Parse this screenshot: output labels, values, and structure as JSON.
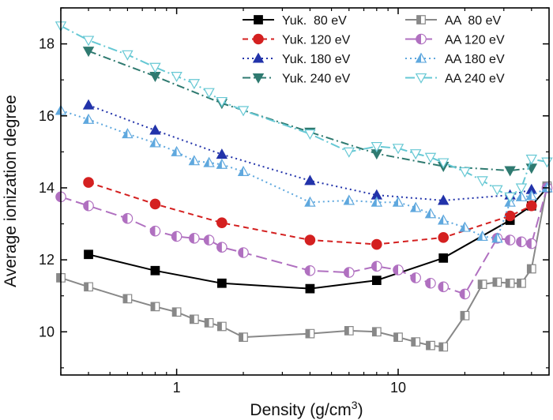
{
  "chart_data": {
    "type": "line",
    "xlabel": "Density (g/cm",
    "xlabel_sup": "3",
    "xlabel_end": ")",
    "ylabel": "Average ionization degree",
    "xscale": "log",
    "xlim": [
      0.3,
      48
    ],
    "ylim": [
      8.8,
      19.0
    ],
    "x_ticks": [
      {
        "value": 1,
        "label": "1"
      },
      {
        "value": 10,
        "label": "10"
      }
    ],
    "y_ticks": [
      {
        "value": 10,
        "label": "10"
      },
      {
        "value": 12,
        "label": "12"
      },
      {
        "value": 14,
        "label": "14"
      },
      {
        "value": 16,
        "label": "16"
      },
      {
        "value": 18,
        "label": "18"
      }
    ],
    "legend_position": "top-right",
    "series": [
      {
        "name": "Yuk.  80 eV",
        "color": "#000000",
        "dash": "",
        "marker": "square",
        "fill": "filled",
        "x": [
          0.4,
          0.8,
          1.6,
          4,
          8,
          16,
          32,
          40,
          47
        ],
        "y": [
          12.15,
          11.7,
          11.35,
          11.2,
          11.43,
          12.05,
          13.1,
          13.5,
          14.0
        ]
      },
      {
        "name": "Yuk. 120 eV",
        "color": "#d42020",
        "dash": "7,5",
        "marker": "circle",
        "fill": "filled",
        "x": [
          0.4,
          0.8,
          1.6,
          4,
          8,
          16,
          32,
          40
        ],
        "y": [
          14.15,
          13.55,
          13.03,
          12.55,
          12.43,
          12.62,
          13.22,
          13.5
        ]
      },
      {
        "name": "Yuk. 180 eV",
        "color": "#2233aa",
        "dash": "2,4",
        "marker": "triangle-up",
        "fill": "filled",
        "x": [
          0.4,
          0.8,
          1.6,
          4,
          8,
          16,
          32,
          40
        ],
        "y": [
          16.3,
          15.6,
          14.93,
          14.2,
          13.8,
          13.65,
          13.8,
          13.95
        ]
      },
      {
        "name": "Yuk. 240 eV",
        "color": "#2f7a70",
        "dash": "10,4,2,4",
        "marker": "triangle-down",
        "fill": "filled",
        "x": [
          0.4,
          0.8,
          1.6,
          4,
          8,
          16,
          32,
          40
        ],
        "y": [
          17.8,
          17.1,
          16.35,
          15.55,
          14.95,
          14.6,
          14.48,
          14.55
        ]
      },
      {
        "name": "AA  80 eV",
        "color": "#888888",
        "dash": "",
        "marker": "square",
        "fill": "half",
        "x": [
          0.3,
          0.4,
          0.6,
          0.8,
          1.0,
          1.2,
          1.4,
          1.6,
          2.0,
          4,
          6,
          8,
          10,
          12,
          14,
          16,
          20,
          24,
          28,
          32,
          36,
          40,
          47
        ],
        "y": [
          11.5,
          11.25,
          10.92,
          10.7,
          10.55,
          10.35,
          10.25,
          10.15,
          9.85,
          9.95,
          10.03,
          10.0,
          9.85,
          9.72,
          9.62,
          9.58,
          10.45,
          11.32,
          11.38,
          11.35,
          11.35,
          11.75,
          14.05
        ]
      },
      {
        "name": "AA 120 eV",
        "color": "#b070c0",
        "dash": "14,6",
        "marker": "circle",
        "fill": "half",
        "x": [
          0.3,
          0.4,
          0.6,
          0.8,
          1.0,
          1.2,
          1.4,
          1.6,
          2.0,
          4,
          6,
          8,
          10,
          12,
          14,
          16,
          20,
          28,
          32,
          36,
          40,
          47
        ],
        "y": [
          13.75,
          13.5,
          13.15,
          12.8,
          12.65,
          12.6,
          12.55,
          12.35,
          12.2,
          11.7,
          11.65,
          11.82,
          11.72,
          11.5,
          11.35,
          11.25,
          11.05,
          12.6,
          12.55,
          12.5,
          12.45,
          14.0
        ]
      },
      {
        "name": "AA 180 eV",
        "color": "#5fa8de",
        "dash": "2,4",
        "marker": "triangle-up",
        "fill": "half",
        "x": [
          0.3,
          0.4,
          0.6,
          0.8,
          1.0,
          1.2,
          1.4,
          1.6,
          2.0,
          4,
          6,
          8,
          10,
          12,
          14,
          16,
          20,
          24,
          28,
          32,
          36,
          40,
          47
        ],
        "y": [
          16.15,
          15.9,
          15.5,
          15.25,
          15.0,
          14.75,
          14.7,
          14.65,
          14.45,
          13.6,
          13.65,
          13.6,
          13.6,
          13.45,
          13.28,
          13.1,
          12.9,
          12.65,
          12.6,
          13.6,
          13.75,
          13.78,
          14.0
        ]
      },
      {
        "name": "AA 240 eV",
        "color": "#66c8d4",
        "dash": "12,4,2,4",
        "marker": "triangle-down",
        "fill": "open",
        "x": [
          0.3,
          0.4,
          0.6,
          0.8,
          1.0,
          1.2,
          1.4,
          1.6,
          2.0,
          4,
          6,
          8,
          10,
          12,
          14,
          16,
          20,
          24,
          28,
          32,
          36,
          40,
          47
        ],
        "y": [
          18.5,
          18.1,
          17.7,
          17.35,
          17.1,
          16.9,
          16.65,
          16.4,
          16.15,
          15.5,
          15.0,
          15.15,
          15.1,
          14.95,
          14.85,
          14.7,
          14.45,
          14.2,
          13.95,
          13.75,
          14.0,
          14.8,
          14.72
        ]
      }
    ]
  }
}
